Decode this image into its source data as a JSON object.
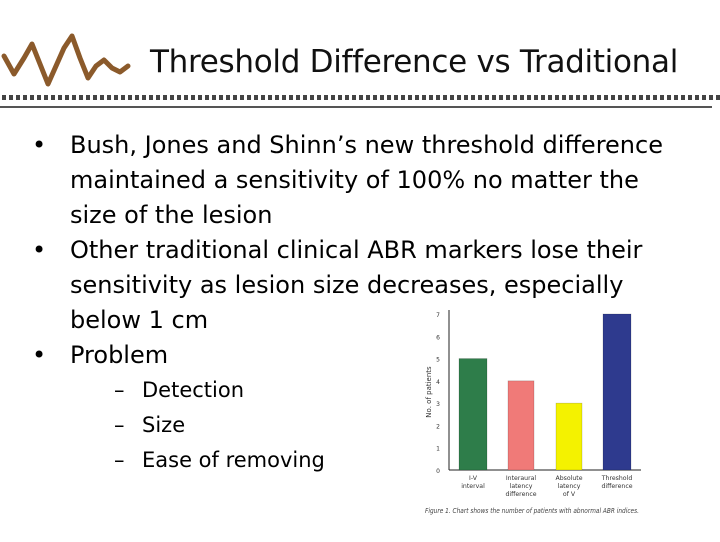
{
  "slide": {
    "title": "Threshold Difference vs Traditional",
    "bullets": [
      {
        "text": "Bush, Jones and Shinn’s new threshold difference maintained a sensitivity of 100% no matter the size of the lesion",
        "subitems": []
      },
      {
        "text": "Other traditional clinical ABR markers lose their sensitivity as lesion size decreases, especially below 1 cm",
        "subitems": []
      },
      {
        "text": "Problem",
        "subitems": [
          "Detection",
          "Size",
          "Ease of removing"
        ]
      }
    ]
  },
  "chart_data": {
    "type": "bar",
    "ylabel": "No. of patients",
    "ylim": [
      0,
      7
    ],
    "yticks": [
      0,
      1,
      2,
      3,
      4,
      5,
      6,
      7
    ],
    "categories": [
      [
        "I-V",
        "interval"
      ],
      [
        "Interaural",
        "latency",
        "difference"
      ],
      [
        "Absolute",
        "latency",
        "of V"
      ],
      [
        "Threshold",
        "difference"
      ]
    ],
    "values": [
      5,
      4,
      3,
      7
    ],
    "colors": [
      "#2e7d4a",
      "#f07a78",
      "#f4f200",
      "#2e3a8e"
    ],
    "caption": "Figure 1. Chart shows the number of patients with abnormal ABR indices."
  }
}
